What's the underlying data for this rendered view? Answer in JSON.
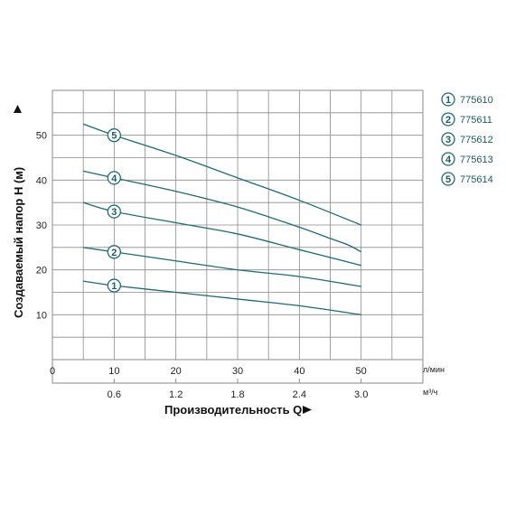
{
  "chart_data": {
    "type": "line",
    "x_axis": {
      "label": "Производительность Q",
      "range": [
        0,
        60
      ],
      "ticks": [
        0,
        10,
        20,
        30,
        40,
        50
      ],
      "tick_labels": [
        "0",
        "10",
        "20",
        "30",
        "40",
        "50"
      ],
      "unit": "л/мин"
    },
    "x2_axis": {
      "ticks": [
        10,
        20,
        30,
        40,
        50
      ],
      "tick_labels": [
        "0.6",
        "1.2",
        "1.8",
        "2.4",
        "3.0"
      ],
      "unit": "м³/ч"
    },
    "y_axis": {
      "label": "Создаваемый напор H (м)",
      "range": [
        0,
        60
      ],
      "ticks": [
        10,
        20,
        30,
        40,
        50
      ],
      "tick_labels": [
        "10",
        "20",
        "30",
        "40",
        "50"
      ]
    },
    "grid": true,
    "legend_position": "right",
    "series": [
      {
        "name": "775610",
        "marker": "1",
        "x": [
          5,
          10,
          20,
          30,
          40,
          50
        ],
        "y": [
          17.5,
          16.5,
          15,
          13.5,
          12,
          10
        ]
      },
      {
        "name": "775611",
        "marker": "2",
        "x": [
          5,
          10,
          20,
          30,
          40,
          50
        ],
        "y": [
          25,
          24,
          22,
          20,
          18.5,
          16.3
        ]
      },
      {
        "name": "775612",
        "marker": "3",
        "x": [
          5,
          10,
          20,
          30,
          40,
          50
        ],
        "y": [
          35,
          33,
          30.5,
          28,
          24.5,
          21
        ]
      },
      {
        "name": "775613",
        "marker": "4",
        "x": [
          5,
          10,
          20,
          30,
          40,
          45,
          48,
          50
        ],
        "y": [
          42,
          40.5,
          37.5,
          34,
          29.5,
          27,
          25.5,
          24
        ]
      },
      {
        "name": "775614",
        "marker": "5",
        "x": [
          5,
          10,
          20,
          30,
          40,
          50
        ],
        "y": [
          52.5,
          50,
          45.5,
          40.5,
          35.5,
          30
        ]
      }
    ]
  },
  "colors": {
    "line": "#1d6b74",
    "marker_stroke": "#1d6b74",
    "grid": "#8a8a8a",
    "text": "#222222"
  }
}
